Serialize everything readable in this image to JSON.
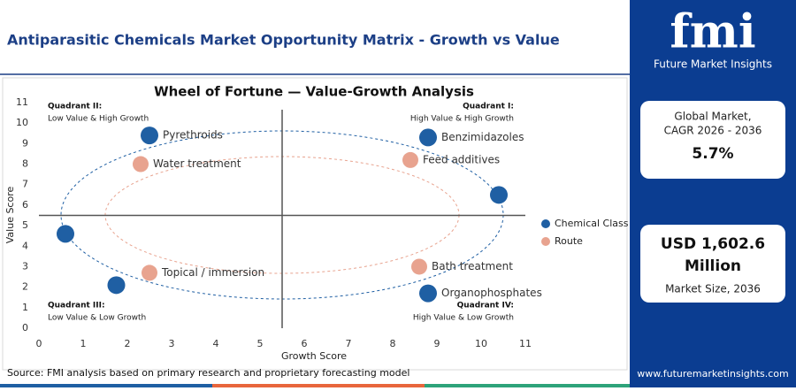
{
  "header": {
    "title": "Antiparasitic Chemicals Market Opportunity Matrix - Growth vs Value"
  },
  "brand": {
    "logo": "fmi",
    "name": "Future Market Insights",
    "website": "www.futuremarketinsights.com"
  },
  "stats": [
    {
      "label_line1": "Global Market,",
      "label_line2": "CAGR 2026 - 2036",
      "value": "5.7%"
    },
    {
      "value_line1": "USD 1,602.6",
      "value_line2": "Million",
      "label": "Market Size, 2036"
    }
  ],
  "source": "Source: FMI analysis based on primary research and proprietary forecasting model",
  "chart_data": {
    "type": "scatter",
    "title": "Wheel of Fortune — Value-Growth Analysis",
    "x_label": "Growth Score",
    "y_label": "Value Score",
    "xlim": [
      0,
      11
    ],
    "ylim": [
      0,
      11
    ],
    "xticks": [
      0,
      1,
      2,
      3,
      4,
      5,
      6,
      7,
      8,
      9,
      10,
      11
    ],
    "yticks": [
      0,
      1,
      2,
      3,
      4,
      5,
      6,
      7,
      8,
      9,
      10,
      11
    ],
    "dividers": {
      "x": 5.5,
      "y": 5.5
    },
    "legend": "right",
    "quadrants": [
      {
        "title": "Quadrant II:",
        "subtitle": "Low Value & High Growth",
        "corner": "top-left"
      },
      {
        "title": "Quadrant I:",
        "subtitle": "High Value & High Growth",
        "corner": "top-right"
      },
      {
        "title": "Quadrant III:",
        "subtitle": "Low Value & Low Growth",
        "corner": "bottom-left"
      },
      {
        "title": "Quadrant IV:",
        "subtitle": "High Value & Low Growth",
        "corner": "bottom-right"
      }
    ],
    "series": [
      {
        "name": "Chemical Class",
        "color": "#1f5fa3",
        "x": [
          2.5,
          8.8,
          10.4,
          0.6,
          1.75,
          8.8
        ],
        "values": [
          9.4,
          9.3,
          6.5,
          4.6,
          2.1,
          1.7
        ],
        "labels": [
          "Pyrethroids",
          "Benzimidazoles",
          null,
          null,
          null,
          "Organophosphates"
        ]
      },
      {
        "name": "Route",
        "color": "#e8a38f",
        "x": [
          2.3,
          8.4,
          8.6,
          2.5
        ],
        "values": [
          8.0,
          8.2,
          3.0,
          2.7
        ],
        "labels": [
          "Water treatment",
          "Feed additives",
          "Bath treatment",
          "Topical / immersion"
        ]
      }
    ]
  }
}
